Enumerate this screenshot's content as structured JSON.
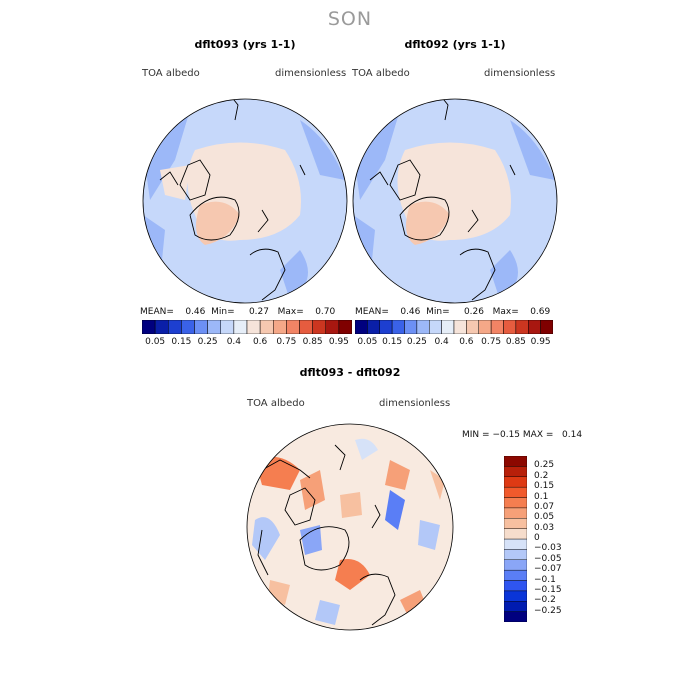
{
  "figure": {
    "title": "SON"
  },
  "panels": [
    {
      "title": "dflt093 (yrs 1-1)",
      "variable": "TOA  albedo",
      "units": "dimensionless",
      "mean_label": "MEAN=",
      "mean": "0.46",
      "min_label": "Min=",
      "min": "0.27",
      "max_label": "Max=",
      "max": "0.70"
    },
    {
      "title": "dflt092 (yrs 1-1)",
      "variable": "TOA  albedo",
      "units": "dimensionless",
      "mean_label": "MEAN=",
      "mean": "0.46",
      "min_label": "Min=",
      "min": "0.26",
      "max_label": "Max=",
      "max": "0.69"
    }
  ],
  "diff_panel": {
    "title": "dflt093 - dflt092",
    "variable": "TOA  albedo",
    "units": "dimensionless",
    "min_label": "MIN =",
    "min": "−0.15",
    "max_label": "MAX =",
    "max": "0.14"
  },
  "colorbar_abs": {
    "colors": [
      "#00007f",
      "#0a1fa8",
      "#1d3fd0",
      "#3a62e8",
      "#6c90f5",
      "#9cb8f8",
      "#c6d8fa",
      "#e6eef8",
      "#f6e4da",
      "#f6c8b0",
      "#f5a888",
      "#f28465",
      "#e65c3f",
      "#cc3620",
      "#a81710",
      "#7f0000"
    ],
    "labels": [
      "0.05",
      "0.15",
      "0.25",
      "0.4",
      "0.6",
      "0.75",
      "0.85",
      "0.95"
    ]
  },
  "colorbar_diff": {
    "colors": [
      "#00007f",
      "#001bb0",
      "#0a35d8",
      "#2f55f0",
      "#5a7ef6",
      "#8aa6f7",
      "#b3c8f8",
      "#d6e2f8",
      "#f6ddcc",
      "#f7c0a0",
      "#f6a078",
      "#f57e50",
      "#f15a2c",
      "#de3a14",
      "#b8200a",
      "#8c0800"
    ],
    "labels": [
      "0.25",
      "0.2",
      "0.15",
      "0.1",
      "0.07",
      "0.05",
      "0.03",
      "0",
      "−0.03",
      "−0.05",
      "−0.07",
      "−0.1",
      "−0.15",
      "−0.2",
      "−0.25"
    ]
  },
  "colors": {
    "ocean_abs": "#c6d8fa",
    "land_warm": "#f6e4da",
    "land_mid": "#f6c8b0",
    "edge_blue": "#9cb8f8",
    "diff_base": "#f8eae0"
  }
}
